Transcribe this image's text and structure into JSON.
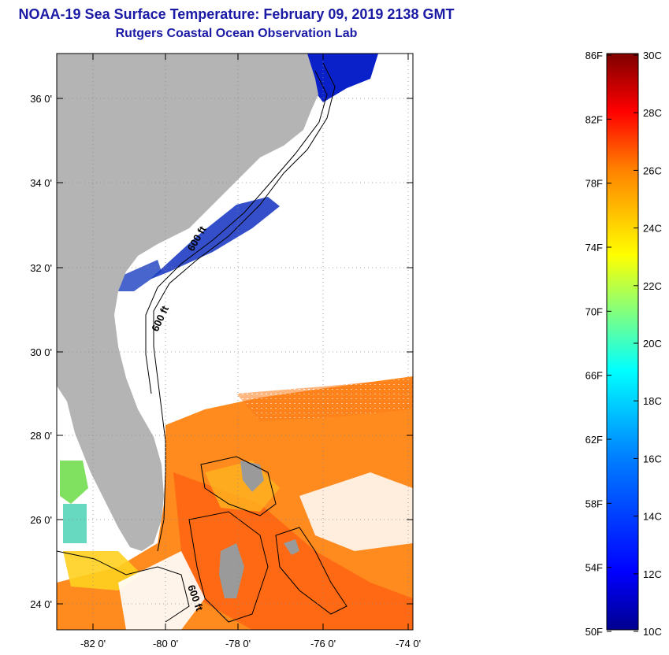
{
  "title": {
    "line1": "NOAA-19 Sea Surface Temperature:  February 09, 2019 2138 GMT",
    "line2": "Rutgers Coastal Ocean Observation Lab"
  },
  "map": {
    "lat_labels": [
      "36 0'",
      "34 0'",
      "32 0'",
      "30 0'",
      "28 0'",
      "26 0'",
      "24 0'"
    ],
    "lon_labels": [
      "-82 0'",
      "-80 0'",
      "-78 0'",
      "-76 0'",
      "-74 0'"
    ],
    "contour_labels": [
      "600 ft",
      "600 ft",
      "600 ft"
    ],
    "land_color": "#b4b4b4",
    "contour_color": "#000000"
  },
  "colorbar": {
    "f_labels": [
      "86F",
      "82F",
      "78F",
      "74F",
      "70F",
      "66F",
      "62F",
      "58F",
      "54F",
      "50F"
    ],
    "c_labels": [
      "30C",
      "28C",
      "26C",
      "24C",
      "22C",
      "20C",
      "18C",
      "16C",
      "14C",
      "12C",
      "10C"
    ],
    "colors": [
      "#7f0000",
      "#ff0000",
      "#ff8000",
      "#ffff00",
      "#80ff80",
      "#00ffff",
      "#0080ff",
      "#0000ff",
      "#00008f"
    ]
  }
}
